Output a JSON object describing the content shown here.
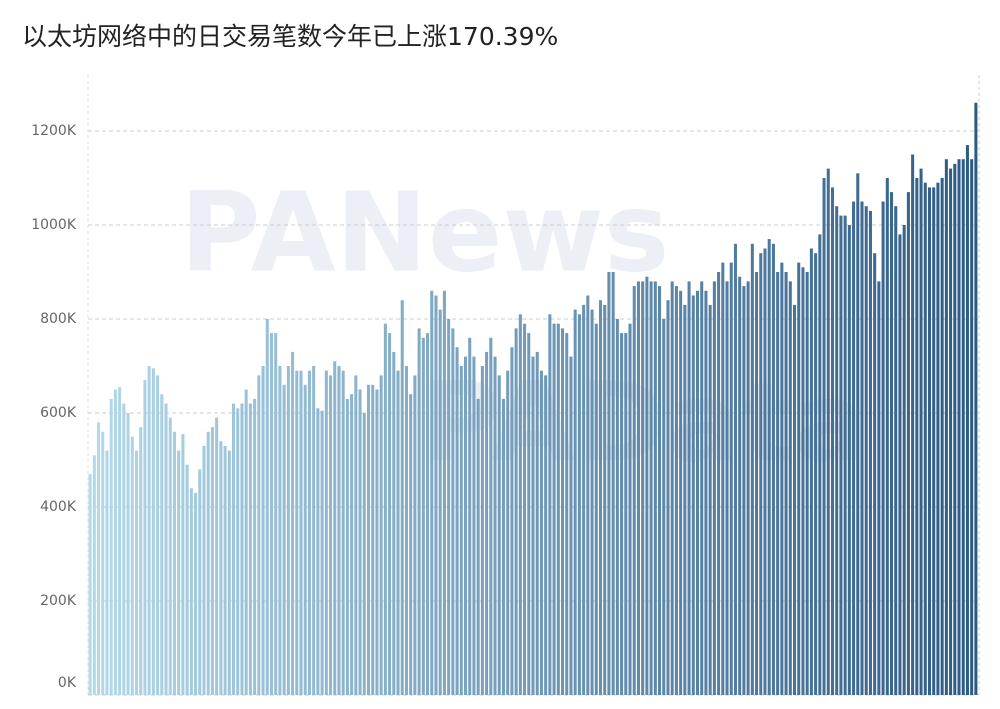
{
  "chart_data": {
    "type": "bar",
    "title": "以太坊网络中的日交易笔数今年已上涨170.39%",
    "watermarks": [
      "PANews",
      "PAData"
    ],
    "values": [
      470,
      510,
      580,
      560,
      520,
      630,
      650,
      655,
      620,
      600,
      550,
      520,
      570,
      670,
      700,
      695,
      680,
      640,
      620,
      590,
      560,
      520,
      555,
      490,
      440,
      430,
      480,
      530,
      560,
      570,
      590,
      540,
      530,
      520,
      620,
      610,
      620,
      650,
      620,
      630,
      680,
      700,
      800,
      770,
      770,
      700,
      660,
      700,
      730,
      690,
      690,
      660,
      690,
      700,
      610,
      605,
      690,
      680,
      710,
      700,
      690,
      630,
      640,
      680,
      650,
      600,
      660,
      660,
      650,
      680,
      790,
      770,
      730,
      690,
      840,
      700,
      640,
      680,
      780,
      760,
      770,
      860,
      850,
      820,
      860,
      800,
      780,
      740,
      700,
      720,
      760,
      720,
      630,
      700,
      730,
      760,
      720,
      680,
      630,
      690,
      740,
      780,
      810,
      790,
      770,
      720,
      730,
      690,
      680,
      810,
      790,
      790,
      780,
      770,
      720,
      820,
      810,
      830,
      850,
      820,
      790,
      840,
      830,
      900,
      900,
      800,
      770,
      770,
      790,
      870,
      880,
      880,
      890,
      880,
      880,
      870,
      800,
      840,
      880,
      870,
      860,
      830,
      880,
      850,
      860,
      880,
      860,
      830,
      880,
      900,
      920,
      880,
      920,
      960,
      890,
      870,
      880,
      960,
      900,
      940,
      950,
      970,
      960,
      900,
      920,
      900,
      880,
      830,
      920,
      910,
      900,
      950,
      940,
      980,
      1100,
      1120,
      1080,
      1040,
      1020,
      1020,
      1000,
      1050,
      1110,
      1050,
      1040,
      1030,
      940,
      880,
      1050,
      1100,
      1070,
      1040,
      980,
      1000,
      1070,
      1150,
      1100,
      1120,
      1090,
      1080,
      1080,
      1090,
      1100,
      1140,
      1120,
      1130,
      1140,
      1140,
      1170,
      1140,
      1260
    ],
    "colors": [
      "#b3d9ea",
      "#2d5a85"
    ],
    "ylim": [
      0,
      1300
    ],
    "yticks": [
      {
        "value": 0,
        "label": "0K"
      },
      {
        "value": 200,
        "label": "200K"
      },
      {
        "value": 400,
        "label": "400K"
      },
      {
        "value": 600,
        "label": "600K"
      },
      {
        "value": 800,
        "label": "800K"
      },
      {
        "value": 1000,
        "label": "1000K"
      },
      {
        "value": 1200,
        "label": "1200K"
      }
    ],
    "grid": true
  }
}
